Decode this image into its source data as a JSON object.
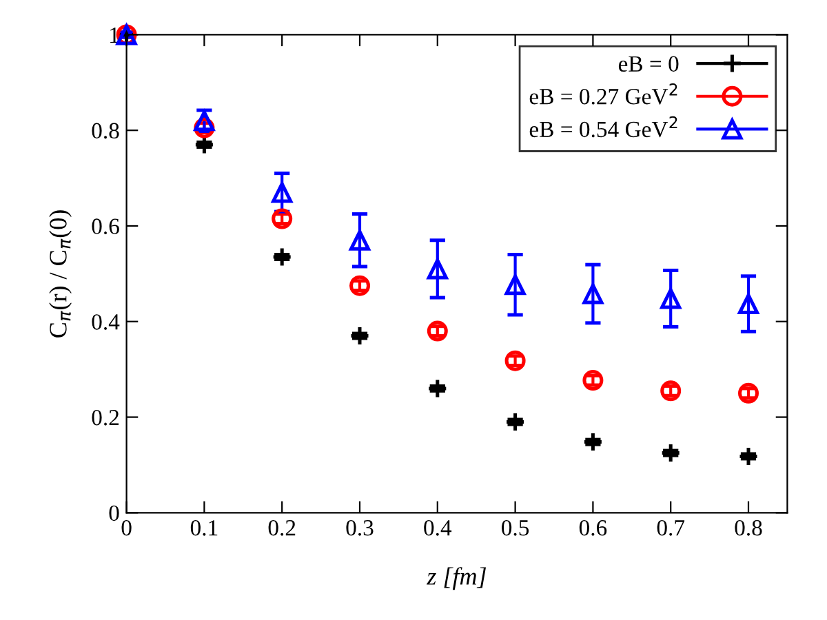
{
  "chart_data": {
    "type": "scatter",
    "xlabel": "z [fm]",
    "ylabel": "C$_{π}$(r) / C$_{π}$(0)",
    "x": [
      0,
      0.1,
      0.2,
      0.3,
      0.4,
      0.5,
      0.6,
      0.7,
      0.8
    ],
    "series": [
      {
        "name": "eB = 0",
        "color": "#000000",
        "marker": "cross",
        "values": [
          1,
          0.77,
          0.535,
          0.37,
          0.26,
          0.19,
          0.148,
          0.125,
          0.118
        ],
        "errors": [
          0.005,
          0.005,
          0.005,
          0.005,
          0.005,
          0.005,
          0.005,
          0.005,
          0.005
        ]
      },
      {
        "name": "eB = 0.27 GeV$^{2}$",
        "color": "#ff0000",
        "marker": "circle",
        "values": [
          1,
          0.805,
          0.615,
          0.475,
          0.38,
          0.318,
          0.277,
          0.255,
          0.25
        ],
        "errors": [
          0.005,
          0.01,
          0.01,
          0.01,
          0.01,
          0.01,
          0.01,
          0.01,
          0.01
        ]
      },
      {
        "name": "eB = 0.54 GeV$^{2}$",
        "color": "#0000ff",
        "marker": "triangle",
        "values": [
          1,
          0.82,
          0.67,
          0.57,
          0.51,
          0.477,
          0.458,
          0.448,
          0.437
        ],
        "errors": [
          0.005,
          0.022,
          0.04,
          0.055,
          0.06,
          0.063,
          0.061,
          0.059,
          0.058
        ]
      }
    ],
    "xlim": [
      0,
      0.85
    ],
    "xticks": [
      0,
      0.1,
      0.2,
      0.3,
      0.4,
      0.5,
      0.6,
      0.7,
      0.8
    ],
    "ylim": [
      0,
      1
    ],
    "yticks": [
      0,
      0.2,
      0.4,
      0.6,
      0.8,
      1
    ],
    "legend": "top right",
    "grid": false
  }
}
